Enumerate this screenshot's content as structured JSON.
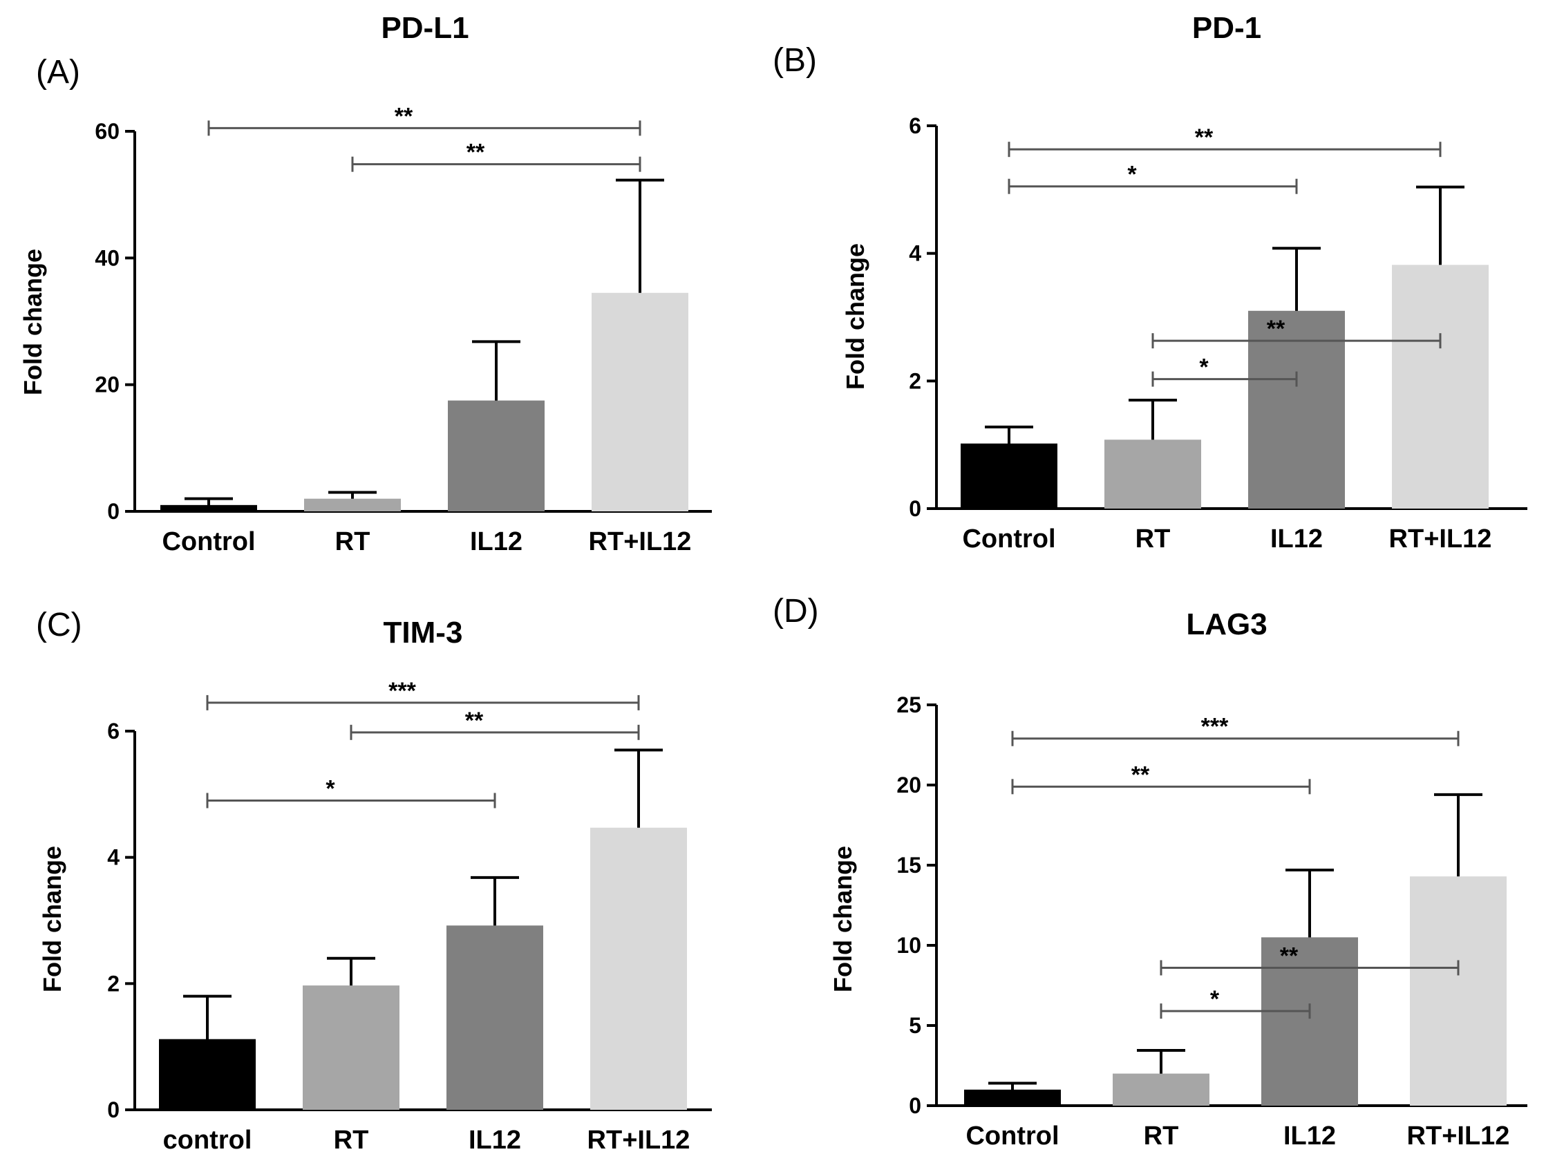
{
  "chart_data": [
    {
      "type": "bar",
      "panel": "(A)",
      "title": "PD-L1",
      "ylabel": "Fold change",
      "xlabel": "",
      "categories": [
        "Control",
        "RT",
        "IL12",
        "RT+IL12"
      ],
      "values": [
        1,
        2,
        17.5,
        34.5
      ],
      "errors": [
        1,
        1,
        9.3,
        17.8
      ],
      "ylim": [
        0,
        60
      ],
      "yticks": [
        "0",
        "20",
        "40",
        "60"
      ],
      "colors": [
        "#000000",
        "#a6a6a6",
        "#808080",
        "#d9d9d9"
      ],
      "significance": [
        {
          "from": 0,
          "to": 3,
          "label": "**",
          "y": 60.5
        },
        {
          "from": 1,
          "to": 3,
          "label": "**",
          "y": 54.8
        }
      ]
    },
    {
      "type": "bar",
      "panel": "(B)",
      "title": "PD-1",
      "ylabel": "Fold change",
      "xlabel": "",
      "categories": [
        "Control",
        "RT",
        "IL12",
        "RT+IL12"
      ],
      "values": [
        1.02,
        1.08,
        3.1,
        3.82
      ],
      "errors": [
        0.26,
        0.62,
        0.98,
        1.22
      ],
      "ylim": [
        0,
        6
      ],
      "yticks": [
        "0",
        "2",
        "4",
        "6"
      ],
      "colors": [
        "#000000",
        "#a6a6a6",
        "#808080",
        "#d9d9d9"
      ],
      "significance": [
        {
          "from": 0,
          "to": 3,
          "label": "**",
          "y": 5.63
        },
        {
          "from": 0,
          "to": 2,
          "label": "*",
          "y": 5.05
        },
        {
          "from": 1,
          "to": 3,
          "label": "**",
          "y": 2.63
        },
        {
          "from": 1,
          "to": 2,
          "label": "*",
          "y": 2.03
        }
      ]
    },
    {
      "type": "bar",
      "panel": "(C)",
      "title": "TIM-3",
      "ylabel": "Fold change",
      "xlabel": "",
      "categories": [
        "control",
        "RT",
        "IL12",
        "RT+IL12"
      ],
      "values": [
        1.12,
        1.97,
        2.92,
        4.47
      ],
      "errors": [
        0.68,
        0.43,
        0.76,
        1.23
      ],
      "ylim": [
        0,
        6
      ],
      "yticks": [
        "0",
        "2",
        "4",
        "6"
      ],
      "colors": [
        "#000000",
        "#a6a6a6",
        "#808080",
        "#d9d9d9"
      ],
      "significance": [
        {
          "from": 0,
          "to": 3,
          "label": "***",
          "y": 6.45
        },
        {
          "from": 1,
          "to": 3,
          "label": "**",
          "y": 5.98
        },
        {
          "from": 0,
          "to": 2,
          "label": "*",
          "y": 4.9
        }
      ]
    },
    {
      "type": "bar",
      "panel": "(D)",
      "title": "LAG3",
      "ylabel": "Fold change",
      "xlabel": "",
      "categories": [
        "Control",
        "RT",
        "IL12",
        "RT+IL12"
      ],
      "values": [
        1,
        2,
        10.5,
        14.3
      ],
      "errors": [
        0.4,
        1.45,
        4.2,
        5.1
      ],
      "ylim": [
        0,
        25
      ],
      "yticks": [
        "0",
        "5",
        "10",
        "15",
        "20",
        "25"
      ],
      "colors": [
        "#000000",
        "#a6a6a6",
        "#808080",
        "#d9d9d9"
      ],
      "significance": [
        {
          "from": 0,
          "to": 3,
          "label": "***",
          "y": 22.9
        },
        {
          "from": 0,
          "to": 2,
          "label": "**",
          "y": 19.9
        },
        {
          "from": 1,
          "to": 3,
          "label": "**",
          "y": 8.6
        },
        {
          "from": 1,
          "to": 2,
          "label": "*",
          "y": 5.9
        }
      ]
    }
  ]
}
